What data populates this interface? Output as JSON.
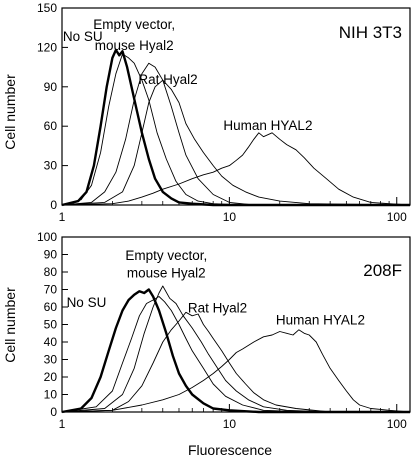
{
  "chart_data": [
    {
      "type": "line",
      "panel": "top",
      "title": "NIH 3T3",
      "xlabel": "",
      "ylabel": "Cell number",
      "xscale": "log",
      "xlim": [
        1,
        120
      ],
      "ylim": [
        0,
        150
      ],
      "xticks": [
        1,
        10,
        100
      ],
      "yticks": [
        0,
        30,
        60,
        90,
        120,
        150
      ],
      "grid": false,
      "legend": "none",
      "annotations": [
        {
          "text": "No SU",
          "x": 1.33,
          "y": 125
        },
        {
          "text": "Empty vector,",
          "x": 2.7,
          "y": 134
        },
        {
          "text": "mouse Hyal2",
          "x": 2.7,
          "y": 118
        },
        {
          "text": "Rat Hyal2",
          "x": 4.3,
          "y": 92
        },
        {
          "text": "Human HYAL2",
          "x": 17,
          "y": 57
        }
      ],
      "series": [
        {
          "style": "thick",
          "x": [
            1,
            1.25,
            1.4,
            1.55,
            1.7,
            1.85,
            2.0,
            2.1,
            2.2,
            2.3,
            2.45,
            2.6,
            2.8,
            3.0,
            3.3,
            3.6,
            4.0,
            4.5,
            5.0,
            6.0,
            8.0,
            12,
            50,
            120
          ],
          "y": [
            0,
            3,
            10,
            30,
            60,
            90,
            112,
            118,
            114,
            117,
            105,
            90,
            72,
            55,
            35,
            20,
            10,
            5,
            2,
            1,
            0,
            0,
            0,
            0
          ]
        },
        {
          "style": "thin",
          "x": [
            1,
            1.3,
            1.5,
            1.7,
            1.9,
            2.1,
            2.3,
            2.5,
            2.7,
            3.0,
            3.3,
            3.7,
            4.2,
            4.8,
            5.5,
            6.5,
            8.0,
            12,
            50,
            120
          ],
          "y": [
            0,
            4,
            15,
            40,
            75,
            100,
            115,
            112,
            108,
            95,
            80,
            55,
            35,
            18,
            8,
            3,
            1,
            0,
            0,
            0
          ]
        },
        {
          "style": "thin",
          "x": [
            1,
            1.5,
            1.8,
            2.1,
            2.4,
            2.7,
            3.0,
            3.3,
            3.6,
            4.0,
            4.5,
            5.0,
            5.5,
            6.5,
            8.0,
            10,
            14,
            30,
            120
          ],
          "y": [
            0,
            2,
            10,
            25,
            50,
            80,
            100,
            108,
            105,
            95,
            75,
            55,
            38,
            20,
            8,
            2,
            0,
            0,
            0
          ]
        },
        {
          "style": "thin",
          "x": [
            1,
            1.8,
            2.3,
            2.7,
            3.0,
            3.3,
            3.6,
            4.0,
            4.5,
            5.0,
            5.5,
            6.2,
            7.0,
            8.0,
            9.0,
            10.5,
            12.5,
            15,
            20,
            30,
            120
          ],
          "y": [
            0,
            2,
            10,
            30,
            55,
            78,
            90,
            95,
            88,
            78,
            62,
            50,
            40,
            30,
            22,
            15,
            10,
            6,
            3,
            1,
            0
          ]
        },
        {
          "style": "thin",
          "x": [
            1,
            2.0,
            2.5,
            3.0,
            3.5,
            4.0,
            5.0,
            6.0,
            7.0,
            8.0,
            9.0,
            10,
            11,
            12,
            13,
            14,
            15,
            16,
            18,
            20,
            22,
            25,
            28,
            32,
            38,
            45,
            55,
            70,
            90,
            120
          ],
          "y": [
            0,
            1,
            3,
            6,
            9,
            12,
            16,
            20,
            23,
            25,
            28,
            30,
            34,
            38,
            44,
            50,
            55,
            52,
            55,
            50,
            46,
            42,
            36,
            28,
            20,
            12,
            6,
            2,
            1,
            0
          ]
        }
      ]
    },
    {
      "type": "line",
      "panel": "bottom",
      "title": "208F",
      "xlabel": "Fluorescence",
      "ylabel": "Cell number",
      "xscale": "log",
      "xlim": [
        1,
        120
      ],
      "ylim": [
        0,
        100
      ],
      "xticks": [
        1,
        10,
        100
      ],
      "yticks": [
        0,
        10,
        20,
        30,
        40,
        50,
        60,
        70,
        80,
        90,
        100
      ],
      "grid": false,
      "legend": "none",
      "annotations": [
        {
          "text": "Empty vector,",
          "x": 4.2,
          "y": 87
        },
        {
          "text": "mouse Hyal2",
          "x": 4.2,
          "y": 77
        },
        {
          "text": "No SU",
          "x": 1.4,
          "y": 60
        },
        {
          "text": "Rat Hyal2",
          "x": 8.5,
          "y": 57
        },
        {
          "text": "Human HYAL2",
          "x": 35,
          "y": 50
        }
      ],
      "series": [
        {
          "style": "thick",
          "x": [
            1,
            1.3,
            1.5,
            1.7,
            1.9,
            2.1,
            2.3,
            2.5,
            2.7,
            2.9,
            3.1,
            3.3,
            3.5,
            3.8,
            4.2,
            4.6,
            5.0,
            5.5,
            6.0,
            7.0,
            8.0,
            10,
            15,
            50,
            120
          ],
          "y": [
            0,
            2,
            8,
            20,
            35,
            48,
            58,
            64,
            67,
            69,
            68,
            70,
            66,
            58,
            45,
            32,
            22,
            15,
            10,
            5,
            2,
            1,
            0,
            0,
            0
          ]
        },
        {
          "style": "thin",
          "x": [
            1,
            1.6,
            2.0,
            2.3,
            2.6,
            2.9,
            3.2,
            3.5,
            3.8,
            4.1,
            4.5,
            5.0,
            5.5,
            6.0,
            7.0,
            8.0,
            9.5,
            12,
            16,
            30,
            120
          ],
          "y": [
            0,
            3,
            12,
            28,
            42,
            55,
            62,
            64,
            66,
            63,
            58,
            50,
            42,
            35,
            25,
            16,
            9,
            4,
            1,
            0,
            0
          ]
        },
        {
          "style": "thin",
          "x": [
            1,
            1.8,
            2.3,
            2.7,
            3.1,
            3.5,
            3.8,
            4.0,
            4.4,
            4.8,
            5.3,
            6.0,
            6.8,
            7.5,
            8.5,
            9.5,
            11,
            13,
            16,
            22,
            40,
            120
          ],
          "y": [
            0,
            2,
            10,
            25,
            45,
            60,
            68,
            72,
            65,
            62,
            55,
            48,
            40,
            33,
            25,
            18,
            12,
            7,
            3,
            1,
            0,
            0
          ]
        },
        {
          "style": "thin",
          "x": [
            1,
            2.0,
            2.5,
            3.0,
            3.5,
            4.0,
            4.5,
            5.0,
            5.5,
            6.0,
            6.5,
            7.0,
            7.5,
            8.0,
            9.0,
            10,
            11,
            12.5,
            14,
            16,
            19,
            25,
            40,
            120
          ],
          "y": [
            0,
            1,
            6,
            15,
            28,
            40,
            47,
            52,
            57,
            55,
            56,
            50,
            46,
            42,
            35,
            28,
            22,
            16,
            11,
            7,
            4,
            2,
            0,
            0
          ]
        },
        {
          "style": "thin",
          "x": [
            1,
            2.0,
            3.0,
            4.0,
            5.0,
            6.0,
            7.0,
            8.0,
            9.0,
            10,
            11,
            12,
            14,
            16,
            18,
            20,
            22,
            24,
            26,
            28,
            30,
            33,
            36,
            40,
            45,
            50,
            55,
            60,
            70,
            90,
            120
          ],
          "y": [
            0,
            1,
            4,
            7,
            10,
            14,
            18,
            22,
            26,
            30,
            34,
            36,
            40,
            43,
            44,
            46,
            45,
            44,
            47,
            45,
            44,
            40,
            33,
            25,
            18,
            12,
            7,
            4,
            2,
            1,
            0
          ]
        }
      ]
    }
  ]
}
